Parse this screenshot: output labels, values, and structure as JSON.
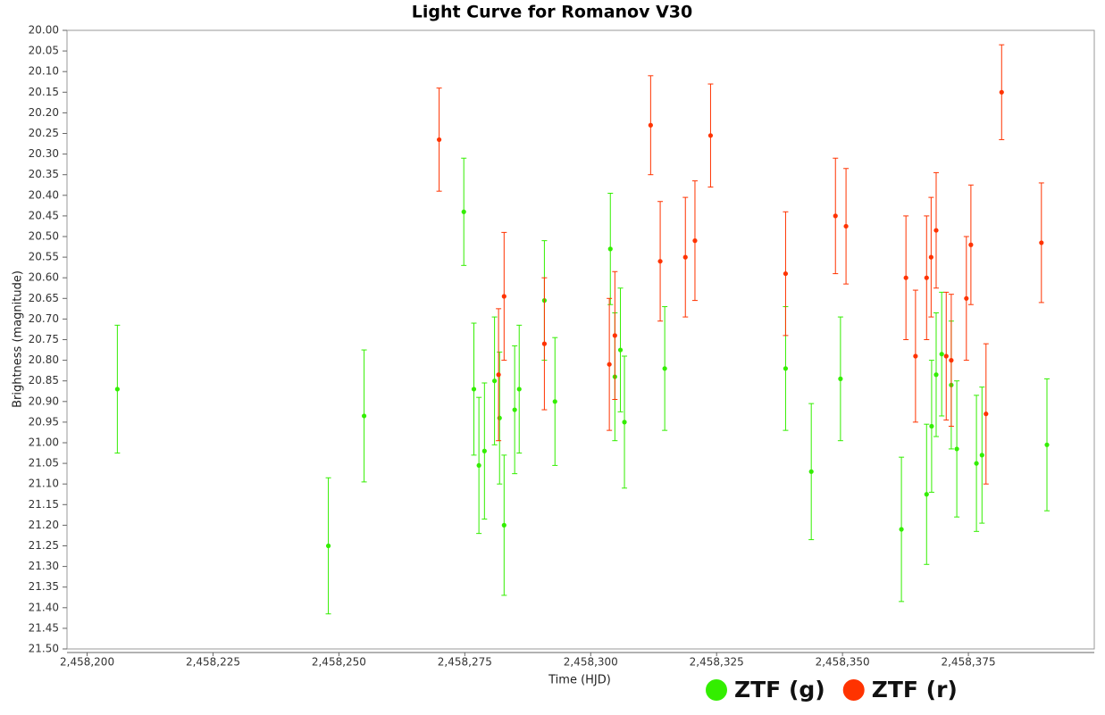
{
  "chart_data": {
    "type": "scatter",
    "title": "Light Curve for Romanov V30",
    "x_label": "Time (HJD)",
    "y_label": "Brightness (magnitude)",
    "xlim": [
      2458196,
      2458400
    ],
    "ylim": [
      20,
      21.5
    ],
    "y_inverted": true,
    "legend": "bottom",
    "xticks": [
      {
        "value": 2458200,
        "label": "2,458,200"
      },
      {
        "value": 2458225,
        "label": "2,458,225"
      },
      {
        "value": 2458250,
        "label": "2,458,250"
      },
      {
        "value": 2458275,
        "label": "2,458,275"
      },
      {
        "value": 2458300,
        "label": "2,458,300"
      },
      {
        "value": 2458325,
        "label": "2,458,325"
      },
      {
        "value": 2458350,
        "label": "2,458,350"
      },
      {
        "value": 2458375,
        "label": "2,458,375"
      }
    ],
    "yticks": [
      {
        "value": 20,
        "label": "20.00"
      },
      {
        "value": 20.05,
        "label": "20.05"
      },
      {
        "value": 20.1,
        "label": "20.10"
      },
      {
        "value": 20.15,
        "label": "20.15"
      },
      {
        "value": 20.2,
        "label": "20.20"
      },
      {
        "value": 20.25,
        "label": "20.25"
      },
      {
        "value": 20.3,
        "label": "20.30"
      },
      {
        "value": 20.35,
        "label": "20.35"
      },
      {
        "value": 20.4,
        "label": "20.40"
      },
      {
        "value": 20.45,
        "label": "20.45"
      },
      {
        "value": 20.5,
        "label": "20.50"
      },
      {
        "value": 20.55,
        "label": "20.55"
      },
      {
        "value": 20.6,
        "label": "20.60"
      },
      {
        "value": 20.65,
        "label": "20.65"
      },
      {
        "value": 20.7,
        "label": "20.70"
      },
      {
        "value": 20.75,
        "label": "20.75"
      },
      {
        "value": 20.8,
        "label": "20.80"
      },
      {
        "value": 20.85,
        "label": "20.85"
      },
      {
        "value": 20.9,
        "label": "20.90"
      },
      {
        "value": 20.95,
        "label": "20.95"
      },
      {
        "value": 21,
        "label": "21.00"
      },
      {
        "value": 21.05,
        "label": "21.05"
      },
      {
        "value": 21.1,
        "label": "21.10"
      },
      {
        "value": 21.15,
        "label": "21.15"
      },
      {
        "value": 21.2,
        "label": "21.20"
      },
      {
        "value": 21.25,
        "label": "21.25"
      },
      {
        "value": 21.3,
        "label": "21.30"
      },
      {
        "value": 21.35,
        "label": "21.35"
      },
      {
        "value": 21.4,
        "label": "21.40"
      },
      {
        "value": 21.45,
        "label": "21.45"
      },
      {
        "value": 21.5,
        "label": "21.50"
      }
    ],
    "series": [
      {
        "name": "ZTF (g)",
        "color": "#33ee00",
        "x": [
          2458206.0,
          2458247.9,
          2458255.0,
          2458274.8,
          2458276.8,
          2458277.8,
          2458278.9,
          2458280.9,
          2458281.9,
          2458282.8,
          2458284.9,
          2458285.8,
          2458290.8,
          2458292.9,
          2458303.9,
          2458304.8,
          2458305.9,
          2458306.7,
          2458314.7,
          2458338.7,
          2458343.8,
          2458349.6,
          2458361.7,
          2458366.7,
          2458367.7,
          2458368.6,
          2458369.7,
          2458371.6,
          2458372.7,
          2458376.6,
          2458377.7,
          2458390.6
        ],
        "values": [
          20.87,
          21.25,
          20.935,
          20.44,
          20.87,
          21.055,
          21.02,
          20.85,
          20.94,
          21.2,
          20.92,
          20.87,
          20.655,
          20.9,
          20.53,
          20.84,
          20.775,
          20.95,
          20.82,
          20.82,
          21.07,
          20.845,
          21.21,
          21.125,
          20.96,
          20.835,
          20.785,
          20.86,
          21.015,
          21.05,
          21.03,
          21.005
        ],
        "errors": [
          0.155,
          0.165,
          0.16,
          0.13,
          0.16,
          0.165,
          0.165,
          0.155,
          0.16,
          0.17,
          0.155,
          0.155,
          0.145,
          0.155,
          0.135,
          0.155,
          0.15,
          0.16,
          0.15,
          0.15,
          0.165,
          0.15,
          0.175,
          0.17,
          0.16,
          0.15,
          0.15,
          0.155,
          0.165,
          0.165,
          0.165,
          0.16
        ]
      },
      {
        "name": "ZTF (r)",
        "color": "#ff3300",
        "x": [
          2458269.9,
          2458281.7,
          2458282.8,
          2458290.8,
          2458303.7,
          2458304.8,
          2458311.9,
          2458313.8,
          2458318.8,
          2458320.7,
          2458323.8,
          2458338.7,
          2458348.6,
          2458350.7,
          2458362.6,
          2458364.5,
          2458366.7,
          2458367.6,
          2458368.6,
          2458370.6,
          2458371.6,
          2458374.6,
          2458375.5,
          2458378.5,
          2458381.6,
          2458389.5
        ],
        "values": [
          20.265,
          20.835,
          20.645,
          20.76,
          20.81,
          20.74,
          20.23,
          20.56,
          20.55,
          20.51,
          20.255,
          20.59,
          20.45,
          20.475,
          20.6,
          20.79,
          20.6,
          20.55,
          20.485,
          20.79,
          20.8,
          20.65,
          20.52,
          20.93,
          20.15,
          20.515
        ],
        "errors": [
          0.125,
          0.16,
          0.155,
          0.16,
          0.16,
          0.155,
          0.12,
          0.145,
          0.145,
          0.145,
          0.125,
          0.15,
          0.14,
          0.14,
          0.15,
          0.16,
          0.15,
          0.145,
          0.14,
          0.155,
          0.16,
          0.15,
          0.145,
          0.17,
          0.115,
          0.145
        ]
      }
    ]
  }
}
